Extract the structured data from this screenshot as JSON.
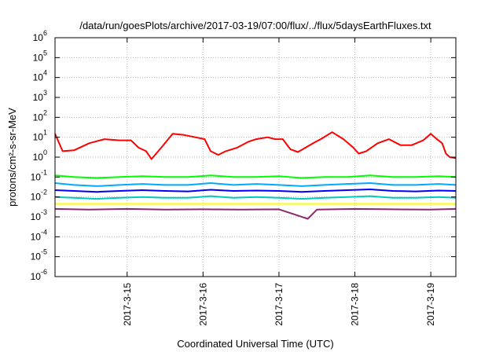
{
  "chart_data": {
    "type": "line",
    "title": "/data/run/goesPlots/archive/2017-03-19/07:00/flux/../flux/5daysEarthFluxes.txt",
    "xlabel": "Coordinated Universal Time (UTC)",
    "ylabel": "protons/cm²-s-sr-MeV",
    "yscale": "log",
    "ylim": [
      1e-06,
      1000000
    ],
    "xlim": [
      14.05,
      19.33
    ],
    "grid": true,
    "x_ticks": [
      {
        "value": 15,
        "label": "2017-3-15"
      },
      {
        "value": 16,
        "label": "2017-3-16"
      },
      {
        "value": 17,
        "label": "2017-3-17"
      },
      {
        "value": 18,
        "label": "2017-3-18"
      },
      {
        "value": 19,
        "label": "2017-3-19"
      }
    ],
    "y_ticks": [
      {
        "exp": -6,
        "label": "10",
        "sup": "-6"
      },
      {
        "exp": -5,
        "label": "10",
        "sup": "-5"
      },
      {
        "exp": -4,
        "label": "10",
        "sup": "-4"
      },
      {
        "exp": -3,
        "label": "10",
        "sup": "-3"
      },
      {
        "exp": -2,
        "label": "10",
        "sup": "-2"
      },
      {
        "exp": -1,
        "label": "10",
        "sup": "-1"
      },
      {
        "exp": 0,
        "label": "10",
        "sup": "0"
      },
      {
        "exp": 1,
        "label": "10",
        "sup": "1"
      },
      {
        "exp": 2,
        "label": "10",
        "sup": "2"
      },
      {
        "exp": 3,
        "label": "10",
        "sup": "3"
      },
      {
        "exp": 4,
        "label": "10",
        "sup": "4"
      },
      {
        "exp": 5,
        "label": "10",
        "sup": "5"
      },
      {
        "exp": 6,
        "label": "10",
        "sup": "6"
      }
    ],
    "series": [
      {
        "color": "#ff0000",
        "x": [
          14.05,
          14.15,
          14.3,
          14.5,
          14.7,
          14.9,
          15.05,
          15.15,
          15.25,
          15.32,
          15.45,
          15.6,
          15.75,
          15.9,
          16.02,
          16.1,
          16.2,
          16.3,
          16.45,
          16.6,
          16.7,
          16.85,
          16.95,
          17.05,
          17.15,
          17.25,
          17.35,
          17.45,
          17.55,
          17.7,
          17.85,
          17.98,
          18.05,
          18.15,
          18.3,
          18.45,
          18.6,
          18.75,
          18.9,
          19.0,
          19.08,
          19.15,
          19.2,
          19.25,
          19.33
        ],
        "y": [
          15,
          2,
          2.2,
          5,
          8,
          7,
          7,
          3,
          2,
          0.8,
          3,
          15,
          13,
          10,
          8,
          2,
          1.3,
          2,
          3,
          6,
          8,
          10,
          8,
          8,
          2.5,
          1.8,
          3,
          5,
          8,
          18,
          8,
          3,
          1.5,
          2,
          5,
          8,
          4,
          4,
          7,
          15,
          8,
          5,
          1.5,
          1,
          0.9
        ]
      },
      {
        "color": "#00ff00",
        "x": [
          14.05,
          14.3,
          14.6,
          14.9,
          15.2,
          15.5,
          15.8,
          16.1,
          16.4,
          16.7,
          17.0,
          17.3,
          17.6,
          17.9,
          18.2,
          18.5,
          18.8,
          19.1,
          19.33
        ],
        "y": [
          0.12,
          0.1,
          0.09,
          0.1,
          0.11,
          0.1,
          0.1,
          0.12,
          0.1,
          0.1,
          0.11,
          0.09,
          0.1,
          0.1,
          0.12,
          0.1,
          0.1,
          0.11,
          0.1
        ]
      },
      {
        "color": "#00aaff",
        "x": [
          14.05,
          14.3,
          14.6,
          14.9,
          15.2,
          15.5,
          15.8,
          16.1,
          16.4,
          16.7,
          17.0,
          17.3,
          17.6,
          17.9,
          18.2,
          18.5,
          18.8,
          19.1,
          19.33
        ],
        "y": [
          0.05,
          0.04,
          0.035,
          0.04,
          0.045,
          0.04,
          0.04,
          0.05,
          0.04,
          0.045,
          0.04,
          0.035,
          0.04,
          0.045,
          0.05,
          0.04,
          0.04,
          0.045,
          0.04
        ]
      },
      {
        "color": "#0000ff",
        "x": [
          14.05,
          14.3,
          14.6,
          14.9,
          15.2,
          15.5,
          15.8,
          16.1,
          16.4,
          16.7,
          17.0,
          17.3,
          17.6,
          17.9,
          18.2,
          18.5,
          18.8,
          19.1,
          19.33
        ],
        "y": [
          0.022,
          0.02,
          0.018,
          0.02,
          0.022,
          0.02,
          0.019,
          0.023,
          0.02,
          0.021,
          0.02,
          0.018,
          0.02,
          0.022,
          0.024,
          0.02,
          0.019,
          0.021,
          0.02
        ]
      },
      {
        "color": "#00ccbb",
        "x": [
          14.05,
          14.3,
          14.6,
          14.9,
          15.2,
          15.5,
          15.8,
          16.1,
          16.4,
          16.7,
          17.0,
          17.3,
          17.6,
          17.9,
          18.2,
          18.5,
          18.8,
          19.1,
          19.33
        ],
        "y": [
          0.01,
          0.009,
          0.008,
          0.009,
          0.01,
          0.009,
          0.009,
          0.011,
          0.009,
          0.01,
          0.009,
          0.008,
          0.009,
          0.01,
          0.011,
          0.009,
          0.009,
          0.01,
          0.009
        ]
      },
      {
        "color": "#ffff00",
        "x": [
          14.05,
          14.5,
          15.0,
          15.5,
          16.0,
          16.5,
          17.0,
          17.5,
          18.0,
          18.5,
          19.0,
          19.33
        ],
        "y": [
          0.0045,
          0.0045,
          0.0045,
          0.0045,
          0.0045,
          0.0045,
          0.0045,
          0.0045,
          0.0045,
          0.0045,
          0.0045,
          0.0045
        ]
      },
      {
        "color": "#8b2a6b",
        "x": [
          14.05,
          14.5,
          15.0,
          15.5,
          16.0,
          16.5,
          17.0,
          17.38,
          17.5,
          18.0,
          18.5,
          19.0,
          19.33
        ],
        "y": [
          0.0025,
          0.0023,
          0.0025,
          0.0023,
          0.0024,
          0.0023,
          0.0024,
          0.0008,
          0.0023,
          0.0025,
          0.0024,
          0.0023,
          0.0025
        ]
      }
    ]
  }
}
